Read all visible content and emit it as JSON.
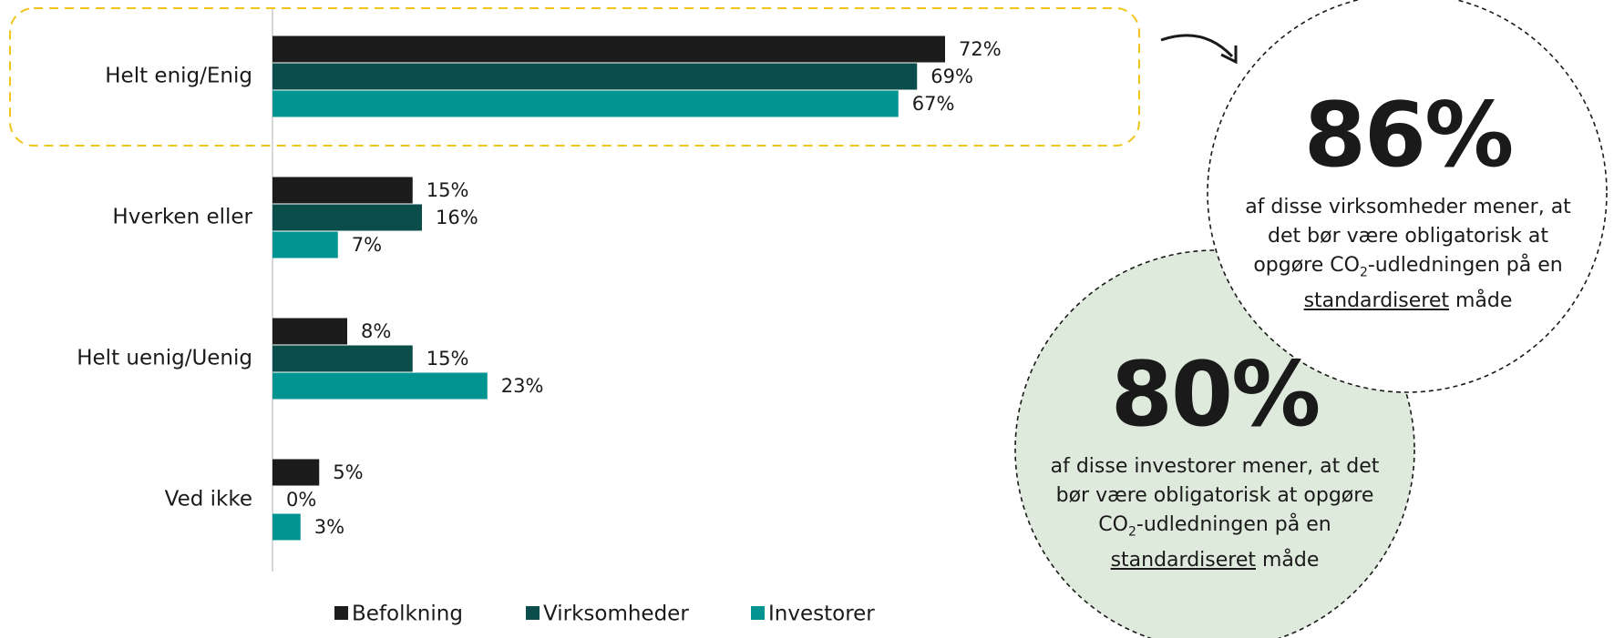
{
  "chart_data": {
    "type": "barh",
    "categories": [
      "Helt enig/Enig",
      "Hverken eller",
      "Helt uenig/Uenig",
      "Ved ikke"
    ],
    "series": [
      {
        "name": "Befolkning",
        "color": "#1c1c1c",
        "values": [
          72,
          15,
          8,
          5
        ],
        "value_labels": [
          "72%",
          "15%",
          "8%",
          "5%"
        ]
      },
      {
        "name": "Virksomheder",
        "color": "#0b4d4b",
        "values": [
          69,
          16,
          15,
          0
        ],
        "value_labels": [
          "69%",
          "16%",
          "15%",
          "0%"
        ]
      },
      {
        "name": "Investorer",
        "color": "#009490",
        "values": [
          67,
          7,
          23,
          3
        ],
        "value_labels": [
          "67%",
          "7%",
          "23%",
          "3%"
        ]
      }
    ],
    "xlim": [
      0,
      100
    ],
    "legend": "bottom",
    "annotations": [
      {
        "value": "86%",
        "text_before": "af disse virksomheder mener, at det bør være obligatorisk at opgøre CO",
        "subscript": "2",
        "text_middle": "-udledningen på en ",
        "underlined": "standardiseret",
        "text_after": " måde"
      },
      {
        "value": "80%",
        "text_before": "af disse investorer mener, at det bør være obligatorisk at opgøre CO",
        "subscript": "2",
        "text_middle": "-udledningen på en ",
        "underlined": "standardiseret",
        "text_after": " måde"
      }
    ]
  }
}
